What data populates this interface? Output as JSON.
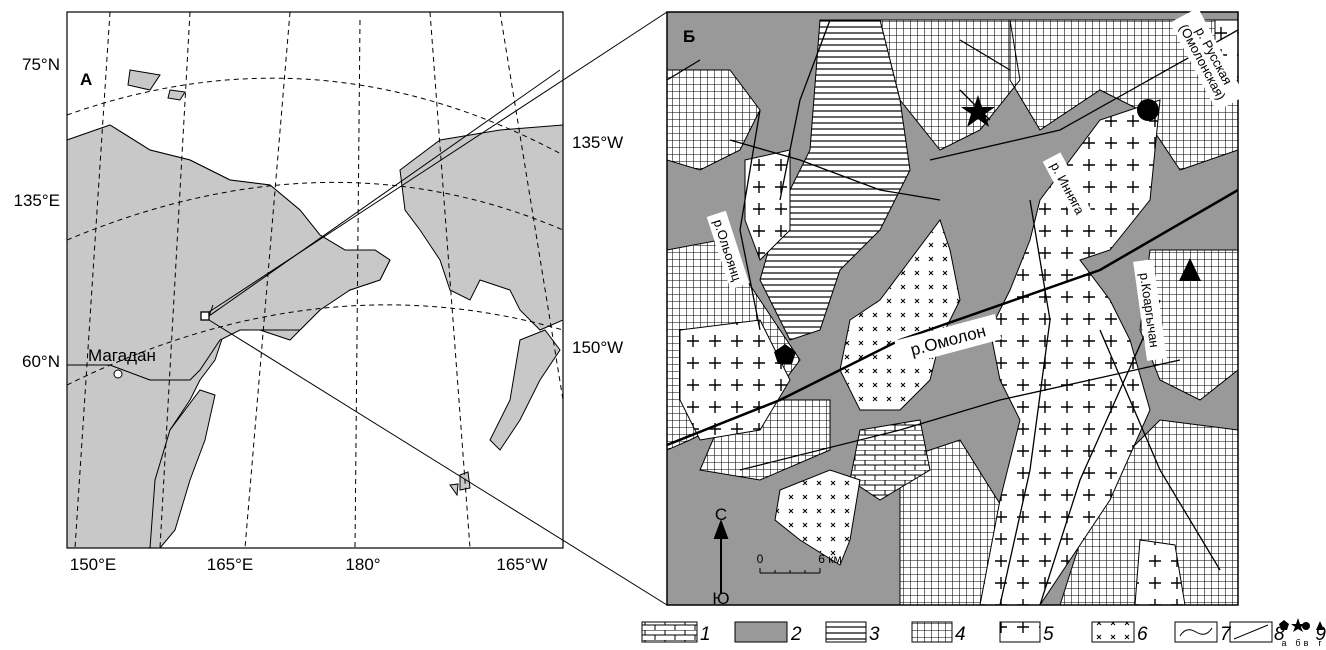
{
  "panel_a": {
    "label": "А",
    "left_labels": [
      "75°N",
      "135°E",
      "60°N"
    ],
    "right_labels": [
      "135°W",
      "150°W"
    ],
    "bottom_labels": [
      "150°E",
      "165°E",
      "180°",
      "165°W"
    ],
    "city": "Магадан"
  },
  "panel_b": {
    "label": "Б",
    "rivers": [
      "р. Русская",
      "(Омолонская)",
      "р. Инняга",
      "р.Ольоянц",
      "р.Омолон",
      "р.Коаргычан"
    ],
    "north": "С",
    "south": "Ю",
    "scale": [
      "0",
      "6 км"
    ]
  },
  "legend": {
    "items": [
      "1",
      "2",
      "3",
      "4",
      "5",
      "6",
      "7",
      "8",
      "9"
    ],
    "symbol_letters": [
      "а",
      "б",
      "в",
      "г"
    ]
  }
}
